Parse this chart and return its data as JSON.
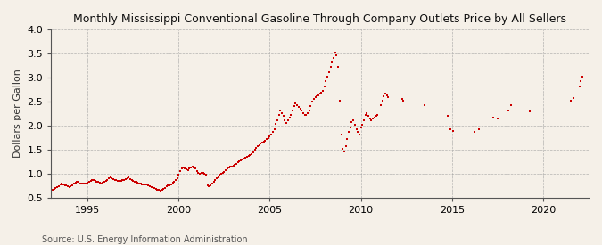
{
  "title": "Monthly Mississippi Conventional Gasoline Through Company Outlets Price by All Sellers",
  "ylabel": "Dollars per Gallon",
  "source": "Source: U.S. Energy Information Administration",
  "bg_color": "#f5f0e8",
  "plot_bg_color": "#f5f0e8",
  "marker_color": "#cc0000",
  "marker": "s",
  "marker_size": 3.5,
  "ylim": [
    0.5,
    4.0
  ],
  "xlim_start": 1993.0,
  "xlim_end": 2022.5,
  "yticks": [
    0.5,
    1.0,
    1.5,
    2.0,
    2.5,
    3.0,
    3.5,
    4.0
  ],
  "xticks": [
    1995,
    2000,
    2005,
    2010,
    2015,
    2020
  ],
  "data": [
    [
      1993.08,
      0.67
    ],
    [
      1993.17,
      0.68
    ],
    [
      1993.25,
      0.7
    ],
    [
      1993.33,
      0.72
    ],
    [
      1993.42,
      0.74
    ],
    [
      1993.5,
      0.77
    ],
    [
      1993.58,
      0.79
    ],
    [
      1993.67,
      0.77
    ],
    [
      1993.75,
      0.76
    ],
    [
      1993.83,
      0.75
    ],
    [
      1993.92,
      0.73
    ],
    [
      1994.0,
      0.72
    ],
    [
      1994.08,
      0.74
    ],
    [
      1994.17,
      0.76
    ],
    [
      1994.25,
      0.79
    ],
    [
      1994.33,
      0.81
    ],
    [
      1994.42,
      0.83
    ],
    [
      1994.5,
      0.82
    ],
    [
      1994.58,
      0.8
    ],
    [
      1994.67,
      0.79
    ],
    [
      1994.75,
      0.79
    ],
    [
      1994.83,
      0.8
    ],
    [
      1994.92,
      0.8
    ],
    [
      1995.0,
      0.81
    ],
    [
      1995.08,
      0.83
    ],
    [
      1995.17,
      0.85
    ],
    [
      1995.25,
      0.87
    ],
    [
      1995.33,
      0.86
    ],
    [
      1995.42,
      0.85
    ],
    [
      1995.5,
      0.83
    ],
    [
      1995.58,
      0.82
    ],
    [
      1995.67,
      0.81
    ],
    [
      1995.75,
      0.8
    ],
    [
      1995.83,
      0.81
    ],
    [
      1995.92,
      0.82
    ],
    [
      1996.0,
      0.84
    ],
    [
      1996.08,
      0.87
    ],
    [
      1996.17,
      0.9
    ],
    [
      1996.25,
      0.92
    ],
    [
      1996.33,
      0.91
    ],
    [
      1996.42,
      0.89
    ],
    [
      1996.5,
      0.87
    ],
    [
      1996.58,
      0.86
    ],
    [
      1996.67,
      0.85
    ],
    [
      1996.75,
      0.85
    ],
    [
      1996.83,
      0.85
    ],
    [
      1996.92,
      0.86
    ],
    [
      1997.0,
      0.87
    ],
    [
      1997.08,
      0.88
    ],
    [
      1997.17,
      0.9
    ],
    [
      1997.25,
      0.92
    ],
    [
      1997.33,
      0.89
    ],
    [
      1997.42,
      0.87
    ],
    [
      1997.5,
      0.85
    ],
    [
      1997.58,
      0.83
    ],
    [
      1997.67,
      0.82
    ],
    [
      1997.75,
      0.81
    ],
    [
      1997.83,
      0.8
    ],
    [
      1997.92,
      0.79
    ],
    [
      1998.0,
      0.78
    ],
    [
      1998.08,
      0.77
    ],
    [
      1998.17,
      0.77
    ],
    [
      1998.25,
      0.78
    ],
    [
      1998.33,
      0.76
    ],
    [
      1998.42,
      0.74
    ],
    [
      1998.5,
      0.72
    ],
    [
      1998.58,
      0.71
    ],
    [
      1998.67,
      0.7
    ],
    [
      1998.75,
      0.68
    ],
    [
      1998.83,
      0.67
    ],
    [
      1998.92,
      0.66
    ],
    [
      1999.0,
      0.65
    ],
    [
      1999.08,
      0.66
    ],
    [
      1999.17,
      0.68
    ],
    [
      1999.25,
      0.7
    ],
    [
      1999.33,
      0.73
    ],
    [
      1999.42,
      0.75
    ],
    [
      1999.5,
      0.76
    ],
    [
      1999.58,
      0.78
    ],
    [
      1999.67,
      0.81
    ],
    [
      1999.75,
      0.83
    ],
    [
      1999.83,
      0.86
    ],
    [
      1999.92,
      0.9
    ],
    [
      2000.0,
      0.97
    ],
    [
      2000.08,
      1.05
    ],
    [
      2000.17,
      1.1
    ],
    [
      2000.25,
      1.12
    ],
    [
      2000.33,
      1.1
    ],
    [
      2000.42,
      1.09
    ],
    [
      2000.5,
      1.08
    ],
    [
      2000.58,
      1.1
    ],
    [
      2000.67,
      1.13
    ],
    [
      2000.75,
      1.15
    ],
    [
      2000.83,
      1.13
    ],
    [
      2000.92,
      1.11
    ],
    [
      2001.0,
      1.05
    ],
    [
      2001.08,
      1.02
    ],
    [
      2001.17,
      1.0
    ],
    [
      2001.25,
      1.02
    ],
    [
      2001.33,
      1.01
    ],
    [
      2001.42,
      0.99
    ],
    [
      2001.5,
      0.97
    ],
    [
      2001.58,
      0.76
    ],
    [
      2001.67,
      0.73
    ],
    [
      2001.75,
      0.75
    ],
    [
      2001.83,
      0.79
    ],
    [
      2001.92,
      0.83
    ],
    [
      2002.0,
      0.87
    ],
    [
      2002.08,
      0.9
    ],
    [
      2002.17,
      0.93
    ],
    [
      2002.25,
      0.97
    ],
    [
      2002.33,
      1.0
    ],
    [
      2002.42,
      1.02
    ],
    [
      2002.5,
      1.04
    ],
    [
      2002.58,
      1.07
    ],
    [
      2002.67,
      1.1
    ],
    [
      2002.75,
      1.12
    ],
    [
      2002.83,
      1.14
    ],
    [
      2002.92,
      1.15
    ],
    [
      2003.0,
      1.17
    ],
    [
      2003.08,
      1.19
    ],
    [
      2003.17,
      1.21
    ],
    [
      2003.25,
      1.23
    ],
    [
      2003.33,
      1.25
    ],
    [
      2003.42,
      1.27
    ],
    [
      2003.5,
      1.29
    ],
    [
      2003.58,
      1.31
    ],
    [
      2003.67,
      1.33
    ],
    [
      2003.75,
      1.35
    ],
    [
      2003.83,
      1.37
    ],
    [
      2003.92,
      1.39
    ],
    [
      2004.0,
      1.41
    ],
    [
      2004.08,
      1.44
    ],
    [
      2004.17,
      1.49
    ],
    [
      2004.25,
      1.53
    ],
    [
      2004.33,
      1.57
    ],
    [
      2004.42,
      1.6
    ],
    [
      2004.5,
      1.62
    ],
    [
      2004.58,
      1.64
    ],
    [
      2004.67,
      1.66
    ],
    [
      2004.75,
      1.69
    ],
    [
      2004.83,
      1.72
    ],
    [
      2004.92,
      1.74
    ],
    [
      2005.0,
      1.77
    ],
    [
      2005.08,
      1.82
    ],
    [
      2005.17,
      1.87
    ],
    [
      2005.25,
      1.93
    ],
    [
      2005.33,
      2.03
    ],
    [
      2005.42,
      2.12
    ],
    [
      2005.5,
      2.22
    ],
    [
      2005.58,
      2.32
    ],
    [
      2005.67,
      2.26
    ],
    [
      2005.75,
      2.21
    ],
    [
      2005.83,
      2.11
    ],
    [
      2005.92,
      2.06
    ],
    [
      2006.0,
      2.11
    ],
    [
      2006.08,
      2.16
    ],
    [
      2006.17,
      2.22
    ],
    [
      2006.25,
      2.32
    ],
    [
      2006.33,
      2.41
    ],
    [
      2006.42,
      2.46
    ],
    [
      2006.5,
      2.43
    ],
    [
      2006.58,
      2.39
    ],
    [
      2006.67,
      2.36
    ],
    [
      2006.75,
      2.31
    ],
    [
      2006.83,
      2.26
    ],
    [
      2006.92,
      2.22
    ],
    [
      2007.0,
      2.23
    ],
    [
      2007.08,
      2.26
    ],
    [
      2007.17,
      2.32
    ],
    [
      2007.25,
      2.41
    ],
    [
      2007.33,
      2.51
    ],
    [
      2007.42,
      2.56
    ],
    [
      2007.5,
      2.59
    ],
    [
      2007.58,
      2.62
    ],
    [
      2007.67,
      2.64
    ],
    [
      2007.75,
      2.66
    ],
    [
      2007.83,
      2.69
    ],
    [
      2007.92,
      2.72
    ],
    [
      2008.0,
      2.82
    ],
    [
      2008.08,
      2.92
    ],
    [
      2008.17,
      3.02
    ],
    [
      2008.25,
      3.12
    ],
    [
      2008.33,
      3.22
    ],
    [
      2008.42,
      3.32
    ],
    [
      2008.5,
      3.42
    ],
    [
      2008.58,
      3.52
    ],
    [
      2008.67,
      3.46
    ],
    [
      2008.75,
      3.22
    ],
    [
      2008.83,
      2.52
    ],
    [
      2008.92,
      1.82
    ],
    [
      2009.0,
      1.52
    ],
    [
      2009.08,
      1.47
    ],
    [
      2009.17,
      1.57
    ],
    [
      2009.25,
      1.72
    ],
    [
      2009.33,
      1.87
    ],
    [
      2009.42,
      1.97
    ],
    [
      2009.5,
      2.07
    ],
    [
      2009.58,
      2.12
    ],
    [
      2009.67,
      2.02
    ],
    [
      2009.75,
      1.92
    ],
    [
      2009.83,
      1.87
    ],
    [
      2009.92,
      1.82
    ],
    [
      2010.0,
      1.97
    ],
    [
      2010.08,
      2.02
    ],
    [
      2010.17,
      2.12
    ],
    [
      2010.25,
      2.22
    ],
    [
      2010.33,
      2.26
    ],
    [
      2010.42,
      2.2
    ],
    [
      2010.5,
      2.15
    ],
    [
      2010.58,
      2.12
    ],
    [
      2010.67,
      2.14
    ],
    [
      2010.75,
      2.17
    ],
    [
      2010.83,
      2.21
    ],
    [
      2010.92,
      2.23
    ],
    [
      2011.08,
      2.42
    ],
    [
      2011.17,
      2.52
    ],
    [
      2011.25,
      2.62
    ],
    [
      2011.33,
      2.67
    ],
    [
      2011.42,
      2.64
    ],
    [
      2011.5,
      2.6
    ],
    [
      2012.25,
      2.55
    ],
    [
      2012.33,
      2.52
    ],
    [
      2013.5,
      2.42
    ],
    [
      2014.75,
      2.2
    ],
    [
      2014.92,
      1.92
    ],
    [
      2015.08,
      1.88
    ],
    [
      2016.25,
      1.87
    ],
    [
      2016.5,
      1.92
    ],
    [
      2017.25,
      2.17
    ],
    [
      2017.5,
      2.15
    ],
    [
      2018.08,
      2.32
    ],
    [
      2018.25,
      2.42
    ],
    [
      2019.25,
      2.3
    ],
    [
      2021.5,
      2.52
    ],
    [
      2021.67,
      2.57
    ],
    [
      2022.0,
      2.82
    ],
    [
      2022.08,
      2.92
    ],
    [
      2022.17,
      3.02
    ]
  ]
}
